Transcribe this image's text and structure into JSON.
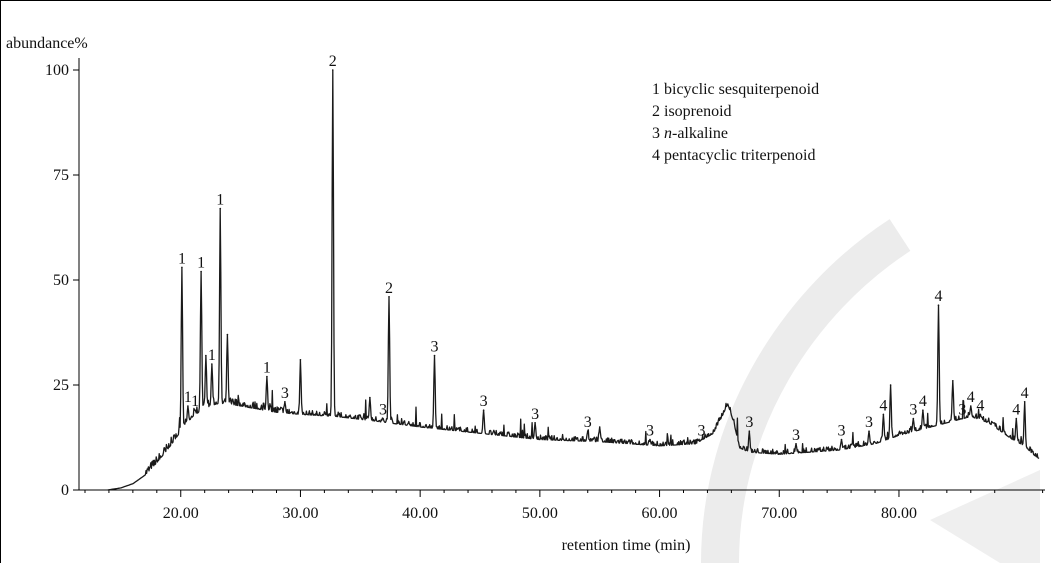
{
  "chart_data": {
    "type": "line",
    "ylabel": "abundance%",
    "xlabel": "retention time (min)",
    "xlim": [
      11.5,
      92.2
    ],
    "ylim": [
      0,
      100
    ],
    "x_ticks": [
      20,
      30,
      40,
      50,
      60,
      70,
      80
    ],
    "x_tick_labels": [
      "20.00",
      "30.00",
      "40.00",
      "50.00",
      "60.00",
      "70.00",
      "80.00"
    ],
    "y_ticks": [
      0,
      25,
      50,
      75,
      100
    ],
    "y_tick_labels": [
      "0",
      "25",
      "50",
      "75",
      "100"
    ],
    "grid": false,
    "legend_position": "top-right",
    "legend": [
      {
        "number": "1",
        "prefix": "",
        "italic": "",
        "text": "bicyclic sesquiterpenoid"
      },
      {
        "number": "2",
        "prefix": "",
        "italic": "",
        "text": "isoprenoid"
      },
      {
        "number": "3",
        "prefix": "",
        "italic": "n",
        "text": "-alkaline"
      },
      {
        "number": "4",
        "prefix": "",
        "italic": "",
        "text": "pentacyclic triterpenoid"
      }
    ],
    "baseline": [
      [
        13.9,
        0
      ],
      [
        15.0,
        0.5
      ],
      [
        16.0,
        1.5
      ],
      [
        17.0,
        3.5
      ],
      [
        18.0,
        6.5
      ],
      [
        19.0,
        10
      ],
      [
        20.0,
        14
      ],
      [
        21.0,
        17.5
      ],
      [
        22.0,
        19.5
      ],
      [
        23.0,
        20.5
      ],
      [
        24.0,
        20.5
      ],
      [
        25.0,
        20
      ],
      [
        26.0,
        19.5
      ],
      [
        28.0,
        18.5
      ],
      [
        30.0,
        18
      ],
      [
        33.0,
        17.5
      ],
      [
        36.0,
        16.5
      ],
      [
        40.0,
        15
      ],
      [
        45.0,
        13.5
      ],
      [
        50.0,
        12
      ],
      [
        55.0,
        11.5
      ],
      [
        60.0,
        10.5
      ],
      [
        63.0,
        11
      ],
      [
        64.5,
        13.5
      ],
      [
        65.3,
        18
      ],
      [
        65.7,
        20.5
      ],
      [
        66.2,
        16
      ],
      [
        66.7,
        10
      ],
      [
        67.5,
        9
      ],
      [
        70.0,
        8.5
      ],
      [
        75.0,
        9.5
      ],
      [
        78.0,
        11
      ],
      [
        80.0,
        13
      ],
      [
        82.0,
        14.5
      ],
      [
        84.0,
        16
      ],
      [
        86.0,
        17.5
      ],
      [
        87.5,
        16
      ],
      [
        88.5,
        14
      ],
      [
        89.5,
        12
      ],
      [
        90.5,
        10.5
      ],
      [
        91.2,
        8.5
      ],
      [
        91.7,
        7.5
      ]
    ],
    "peaks": [
      {
        "x": 20.1,
        "y": 53,
        "label": "1"
      },
      {
        "x": 20.6,
        "y": 20,
        "label": "1"
      },
      {
        "x": 21.2,
        "y": 19,
        "label": "1"
      },
      {
        "x": 21.7,
        "y": 52,
        "label": "1"
      },
      {
        "x": 22.1,
        "y": 32,
        "label": ""
      },
      {
        "x": 22.6,
        "y": 30,
        "label": "1"
      },
      {
        "x": 23.3,
        "y": 67,
        "label": "1"
      },
      {
        "x": 23.9,
        "y": 37,
        "label": ""
      },
      {
        "x": 27.2,
        "y": 27,
        "label": "1"
      },
      {
        "x": 28.7,
        "y": 21,
        "label": "3"
      },
      {
        "x": 30.0,
        "y": 31,
        "label": ""
      },
      {
        "x": 32.7,
        "y": 100,
        "label": "2"
      },
      {
        "x": 35.8,
        "y": 22,
        "label": ""
      },
      {
        "x": 36.9,
        "y": 17,
        "label": "3"
      },
      {
        "x": 37.4,
        "y": 46,
        "label": "2"
      },
      {
        "x": 41.2,
        "y": 32,
        "label": "3"
      },
      {
        "x": 45.3,
        "y": 19,
        "label": "3"
      },
      {
        "x": 49.6,
        "y": 16,
        "label": "3"
      },
      {
        "x": 54.0,
        "y": 14,
        "label": "3"
      },
      {
        "x": 55.0,
        "y": 15,
        "label": ""
      },
      {
        "x": 59.2,
        "y": 12,
        "label": "3"
      },
      {
        "x": 63.5,
        "y": 12,
        "label": "3"
      },
      {
        "x": 67.5,
        "y": 14,
        "label": "3"
      },
      {
        "x": 71.4,
        "y": 11,
        "label": "3"
      },
      {
        "x": 75.2,
        "y": 12,
        "label": "3"
      },
      {
        "x": 77.5,
        "y": 14,
        "label": "3"
      },
      {
        "x": 78.7,
        "y": 18,
        "label": "4"
      },
      {
        "x": 79.3,
        "y": 25,
        "label": ""
      },
      {
        "x": 81.2,
        "y": 17,
        "label": "3"
      },
      {
        "x": 82.0,
        "y": 19,
        "label": "4"
      },
      {
        "x": 83.3,
        "y": 44,
        "label": "4"
      },
      {
        "x": 84.5,
        "y": 26,
        "label": ""
      },
      {
        "x": 85.3,
        "y": 17,
        "label": "3"
      },
      {
        "x": 86.0,
        "y": 20,
        "label": "4"
      },
      {
        "x": 86.8,
        "y": 18,
        "label": "4"
      },
      {
        "x": 89.8,
        "y": 17,
        "label": "4"
      },
      {
        "x": 90.5,
        "y": 21,
        "label": "4"
      }
    ]
  }
}
